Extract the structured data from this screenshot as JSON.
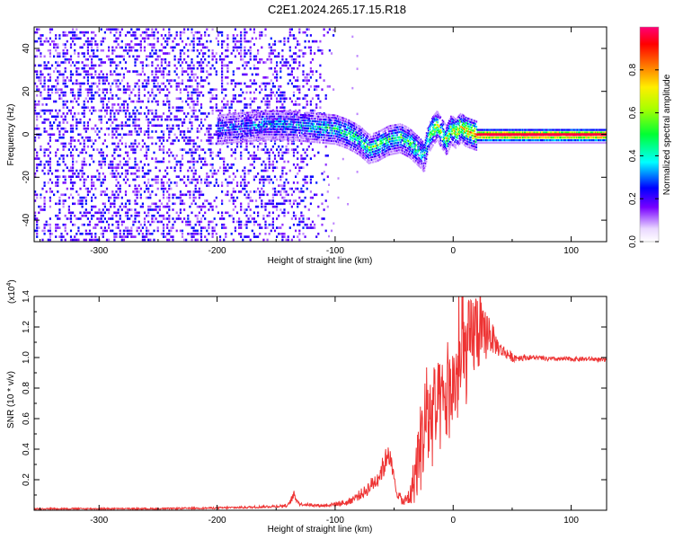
{
  "title": "C2E1.2024.265.17.15.R18",
  "chart_data": [
    {
      "type": "heatmap",
      "title": "C2E1.2024.265.17.15.R18",
      "xlabel": "Height of straight line (km)",
      "ylabel": "Frequency (Hz)",
      "xlim": [
        -355,
        130
      ],
      "ylim": [
        -50,
        50
      ],
      "xticks": [
        -300,
        -200,
        -100,
        0,
        100
      ],
      "xtick_labels": [
        "-300",
        "-200",
        "-100",
        "0",
        "100"
      ],
      "yticks": [
        -40,
        -20,
        0,
        20,
        40
      ],
      "ytick_labels": [
        "-40",
        "-20",
        "0",
        "20",
        "40"
      ],
      "colorbar": {
        "label": "Normalized spectral amplitude",
        "range": [
          0,
          1
        ],
        "ticks": [
          0.0,
          0.2,
          0.4,
          0.6,
          0.8
        ],
        "tick_labels": [
          "0.0",
          "0.2",
          "0.4",
          "0.6",
          "0.8"
        ],
        "colors": [
          "#ffffff",
          "#7700ff",
          "#0000ff",
          "#00ffff",
          "#00ff00",
          "#ffff00",
          "#ff8800",
          "#ff0000",
          "#ff0088"
        ]
      },
      "noise_region_x": [
        -355,
        -110
      ],
      "signal_line": {
        "x": [
          -200,
          -180,
          -160,
          -140,
          -120,
          -100,
          -90,
          -80,
          -72,
          -65,
          -55,
          -45,
          -38,
          -30,
          -25,
          -22,
          -18,
          -14,
          -10,
          -6,
          -2,
          2,
          6,
          10,
          15,
          20,
          30,
          40,
          60,
          80,
          100,
          130
        ],
        "freq": [
          3,
          4,
          5,
          5,
          4,
          3,
          1,
          -2,
          -6,
          -5,
          -2,
          -1,
          -3,
          -7,
          -10,
          -2,
          2,
          5,
          1,
          -2,
          3,
          1,
          4,
          2,
          1,
          0,
          0,
          0,
          0,
          0,
          0,
          0
        ],
        "amplitude": [
          0.3,
          0.3,
          0.35,
          0.35,
          0.4,
          0.45,
          0.5,
          0.45,
          0.5,
          0.55,
          0.5,
          0.5,
          0.5,
          0.45,
          0.4,
          0.55,
          0.6,
          0.65,
          0.6,
          0.6,
          0.65,
          0.7,
          0.7,
          0.75,
          0.8,
          0.9,
          1.0,
          1.0,
          1.0,
          1.0,
          1.0,
          1.0
        ]
      }
    },
    {
      "type": "line",
      "xlabel": "Height of straight line (km)",
      "ylabel": "SNR (10 * v/v)",
      "scale_label": "(x10",
      "scale_exponent": "4",
      "scale_suffix": ")",
      "xlim": [
        -355,
        130
      ],
      "ylim": [
        0,
        1.4
      ],
      "xticks": [
        -300,
        -200,
        -100,
        0,
        100
      ],
      "xtick_labels": [
        "-300",
        "-200",
        "-100",
        "0",
        "100"
      ],
      "yticks": [
        0.2,
        0.4,
        0.6,
        0.8,
        1.0,
        1.2,
        1.4
      ],
      "ytick_labels": [
        "0.2",
        "0.4",
        "0.6",
        "0.8",
        "1.0",
        "1.2",
        "1.4"
      ],
      "series": [
        {
          "name": "SNR",
          "color": "#ee3333",
          "x": [
            -355,
            -300,
            -250,
            -200,
            -170,
            -140,
            -135,
            -130,
            -110,
            -90,
            -75,
            -65,
            -58,
            -55,
            -52,
            -48,
            -42,
            -36,
            -32,
            -28,
            -24,
            -20,
            -15,
            -10,
            -5,
            0,
            5,
            10,
            15,
            20,
            25,
            30,
            35,
            40,
            45,
            50,
            60,
            70,
            80,
            90,
            100,
            110,
            120,
            130
          ],
          "y": [
            0.01,
            0.01,
            0.01,
            0.015,
            0.02,
            0.03,
            0.1,
            0.04,
            0.03,
            0.05,
            0.12,
            0.2,
            0.3,
            0.4,
            0.28,
            0.12,
            0.05,
            0.1,
            0.25,
            0.4,
            0.55,
            0.6,
            0.62,
            0.68,
            0.72,
            0.82,
            0.9,
            1.0,
            1.1,
            1.2,
            1.12,
            1.18,
            1.1,
            1.05,
            1.03,
            1.0,
            1.0,
            1.0,
            0.99,
            0.99,
            0.99,
            0.99,
            0.99,
            0.98
          ],
          "noise_amplitude": [
            0.005,
            0.005,
            0.005,
            0.006,
            0.008,
            0.01,
            0.03,
            0.01,
            0.01,
            0.02,
            0.04,
            0.06,
            0.08,
            0.08,
            0.06,
            0.03,
            0.03,
            0.08,
            0.2,
            0.3,
            0.35,
            0.35,
            0.35,
            0.3,
            0.3,
            0.3,
            0.35,
            0.35,
            0.3,
            0.3,
            0.2,
            0.15,
            0.08,
            0.05,
            0.04,
            0.03,
            0.02,
            0.015,
            0.015,
            0.015,
            0.015,
            0.015,
            0.015,
            0.015
          ]
        }
      ]
    }
  ]
}
